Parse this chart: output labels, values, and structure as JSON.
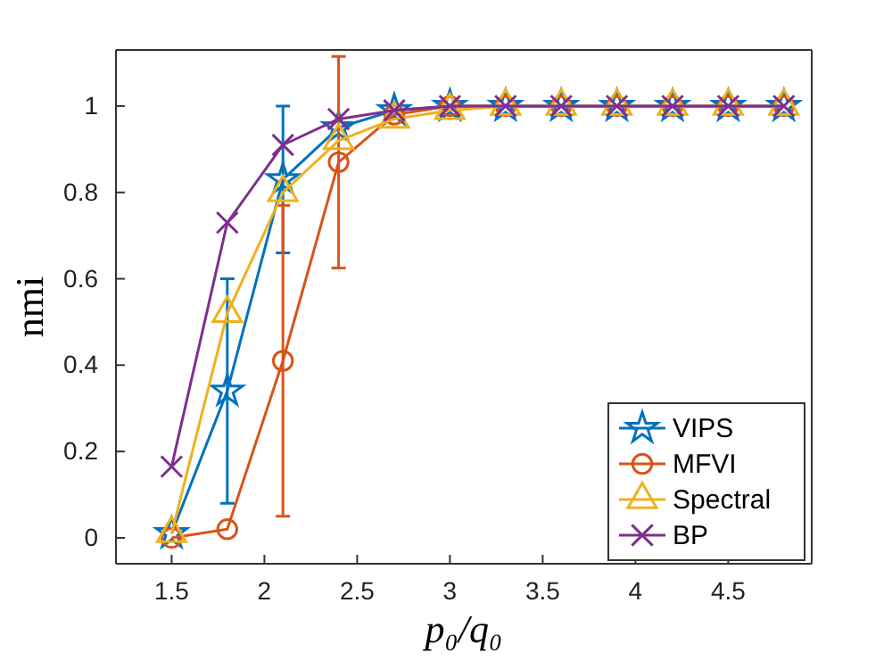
{
  "chart_data": {
    "type": "line",
    "xlabel": "p₀/q₀",
    "ylabel": "nmi",
    "x": [
      1.5,
      1.8,
      2.1,
      2.4,
      2.7,
      3.0,
      3.3,
      3.6,
      3.9,
      4.2,
      4.5,
      4.8
    ],
    "xlim": [
      1.2,
      4.95
    ],
    "xticks": [
      1.5,
      2,
      2.5,
      3,
      3.5,
      4,
      4.5
    ],
    "ylim": [
      -0.06,
      1.13
    ],
    "yticks": [
      0,
      0.2,
      0.4,
      0.6,
      0.8,
      1
    ],
    "grid": false,
    "legend": "bottom right",
    "line_style": "solid",
    "series": [
      {
        "name": "VIPS",
        "color": "#0072bd",
        "marker": "star",
        "values": [
          0.01,
          0.34,
          0.83,
          0.95,
          0.99,
          1,
          1,
          1,
          1,
          1,
          1,
          1
        ],
        "errors": [
          null,
          0.26,
          0.17,
          null,
          null,
          null,
          null,
          null,
          null,
          null,
          null,
          null
        ]
      },
      {
        "name": "MFVI",
        "color": "#d95319",
        "marker": "circle",
        "values": [
          0,
          0.02,
          0.41,
          0.87,
          0.98,
          1,
          1,
          1,
          1,
          1,
          1,
          1
        ],
        "errors": [
          null,
          null,
          0.36,
          0.245,
          null,
          null,
          null,
          null,
          null,
          null,
          null,
          null
        ]
      },
      {
        "name": "Spectral",
        "color": "#edb120",
        "marker": "triangle",
        "values": [
          0.01,
          0.52,
          0.8,
          0.92,
          0.97,
          0.99,
          1,
          1,
          1,
          1,
          1,
          1
        ]
      },
      {
        "name": "BP",
        "color": "#7e2f8e",
        "marker": "cross",
        "values": [
          0.165,
          0.73,
          0.91,
          0.97,
          0.99,
          1,
          1,
          1,
          1,
          1,
          1,
          1
        ]
      }
    ]
  }
}
